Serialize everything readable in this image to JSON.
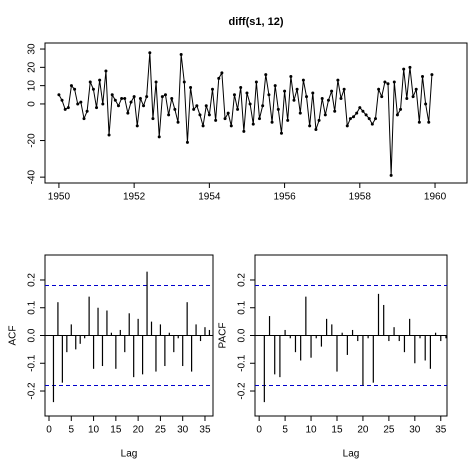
{
  "chart_data": [
    {
      "type": "line",
      "title": "diff(s1, 12)",
      "color": "#000000",
      "x": [
        1950.0,
        1950.083,
        1950.167,
        1950.25,
        1950.333,
        1950.417,
        1950.5,
        1950.583,
        1950.667,
        1950.75,
        1950.833,
        1950.917,
        1951.0,
        1951.083,
        1951.167,
        1951.25,
        1951.333,
        1951.417,
        1951.5,
        1951.583,
        1951.667,
        1951.75,
        1951.833,
        1951.917,
        1952.0,
        1952.083,
        1952.167,
        1952.25,
        1952.333,
        1952.417,
        1952.5,
        1952.583,
        1952.667,
        1952.75,
        1952.833,
        1952.917,
        1953.0,
        1953.083,
        1953.167,
        1953.25,
        1953.333,
        1953.417,
        1953.5,
        1953.583,
        1953.667,
        1953.75,
        1953.833,
        1953.917,
        1954.0,
        1954.083,
        1954.167,
        1954.25,
        1954.333,
        1954.417,
        1954.5,
        1954.583,
        1954.667,
        1954.75,
        1954.833,
        1954.917,
        1955.0,
        1955.083,
        1955.167,
        1955.25,
        1955.333,
        1955.417,
        1955.5,
        1955.583,
        1955.667,
        1955.75,
        1955.833,
        1955.917,
        1956.0,
        1956.083,
        1956.167,
        1956.25,
        1956.333,
        1956.417,
        1956.5,
        1956.583,
        1956.667,
        1956.75,
        1956.833,
        1956.917,
        1957.0,
        1957.083,
        1957.167,
        1957.25,
        1957.333,
        1957.417,
        1957.5,
        1957.583,
        1957.667,
        1957.75,
        1957.833,
        1957.917,
        1958.0,
        1958.083,
        1958.167,
        1958.25,
        1958.333,
        1958.417,
        1958.5,
        1958.583,
        1958.667,
        1958.75,
        1958.833,
        1958.917,
        1959.0,
        1959.083,
        1959.167,
        1959.25,
        1959.333,
        1959.417,
        1959.5,
        1959.583,
        1959.667,
        1959.75,
        1959.833,
        1959.917
      ],
      "values": [
        5,
        2,
        -3,
        -2,
        10,
        8,
        0,
        1,
        -8,
        -4,
        12,
        8,
        -2,
        13,
        0,
        18,
        -17,
        5,
        2,
        -1,
        3,
        3,
        -5,
        1,
        4,
        -12,
        3,
        -1,
        4,
        28,
        -8,
        12,
        -18,
        4,
        5,
        -6,
        3,
        -3,
        -10,
        27,
        12,
        -21,
        9,
        -3,
        -1,
        -6,
        -12,
        -1,
        -6,
        8,
        -9,
        14,
        17,
        -8,
        -5,
        -12,
        5,
        -3,
        9,
        -15,
        6,
        0,
        -11,
        12,
        -8,
        -1,
        16,
        5,
        -10,
        10,
        -3,
        -16,
        7,
        -9,
        15,
        2,
        8,
        -5,
        13,
        4,
        -12,
        6,
        -14,
        -9,
        3,
        -6,
        2,
        7,
        -4,
        13,
        3,
        8,
        -12,
        -8,
        -7,
        -5,
        -2,
        -4,
        -6,
        -8,
        -11,
        -8,
        8,
        4,
        12,
        11,
        -39,
        12,
        -6,
        -3,
        19,
        3,
        20,
        4,
        8,
        -10,
        15,
        0,
        -10,
        16
      ],
      "xlim": [
        1949.63,
        1960.85
      ],
      "xticks": [
        1950,
        1952,
        1954,
        1956,
        1958,
        1960
      ],
      "ylim": [
        -43.2,
        33.3
      ],
      "yticks": [
        -40,
        -20,
        0,
        10,
        20,
        30
      ]
    },
    {
      "type": "bar",
      "x_label": "Lag",
      "y_label": "ACF",
      "color": "#000000",
      "x": [
        1,
        2,
        3,
        4,
        5,
        6,
        7,
        8,
        9,
        10,
        11,
        12,
        13,
        14,
        15,
        16,
        17,
        18,
        19,
        20,
        21,
        22,
        23,
        24,
        25,
        26,
        27,
        28,
        29,
        30,
        31,
        32,
        33,
        34,
        35,
        36
      ],
      "values": [
        -0.24,
        0.12,
        -0.17,
        -0.06,
        0.04,
        -0.05,
        -0.03,
        -0.01,
        0.14,
        -0.12,
        0.1,
        -0.11,
        0.09,
        0.01,
        -0.12,
        0.02,
        -0.06,
        0.08,
        -0.15,
        0.06,
        -0.14,
        0.23,
        0.05,
        -0.13,
        0.04,
        -0.11,
        0.01,
        -0.06,
        -0.01,
        -0.11,
        0.12,
        -0.13,
        0.04,
        -0.02,
        0.03,
        0.02
      ],
      "xlim": [
        -0.9,
        36.8
      ],
      "xticks": [
        0,
        5,
        10,
        15,
        20,
        25,
        30,
        35
      ],
      "ylim": [
        -0.29,
        0.29
      ],
      "yticks": [
        -0.2,
        -0.1,
        {
          "value": 0,
          "label": "0.0"
        },
        0.1,
        0.2
      ],
      "hlines": [
        0.18,
        -0.18
      ],
      "hline_color": "#0000cd"
    },
    {
      "type": "bar",
      "x_label": "Lag",
      "y_label": "PACF",
      "color": "#000000",
      "x": [
        1,
        2,
        3,
        4,
        5,
        6,
        7,
        8,
        9,
        10,
        11,
        12,
        13,
        14,
        15,
        16,
        17,
        18,
        19,
        20,
        21,
        22,
        23,
        24,
        25,
        26,
        27,
        28,
        29,
        30,
        31,
        32,
        33,
        34,
        35,
        36
      ],
      "values": [
        -0.24,
        0.07,
        -0.14,
        -0.15,
        0.02,
        -0.01,
        -0.06,
        -0.09,
        0.14,
        -0.08,
        -0.01,
        -0.04,
        0.06,
        0.04,
        -0.13,
        0.01,
        -0.07,
        0.02,
        -0.02,
        -0.18,
        -0.01,
        -0.17,
        0.15,
        0.11,
        -0.02,
        0.03,
        -0.02,
        -0.06,
        0.06,
        -0.1,
        -0.01,
        -0.09,
        -0.12,
        0.01,
        -0.02,
        -0.01
      ],
      "xlim": [
        -0.8,
        36.2
      ],
      "xticks": [
        0,
        5,
        10,
        15,
        20,
        25,
        30,
        35
      ],
      "ylim": [
        -0.29,
        0.29
      ],
      "yticks": [
        -0.2,
        -0.1,
        {
          "value": 0,
          "label": "0.0"
        },
        0.1,
        0.2
      ],
      "hlines": [
        0.18,
        -0.18
      ],
      "hline_color": "#0000cd"
    }
  ]
}
